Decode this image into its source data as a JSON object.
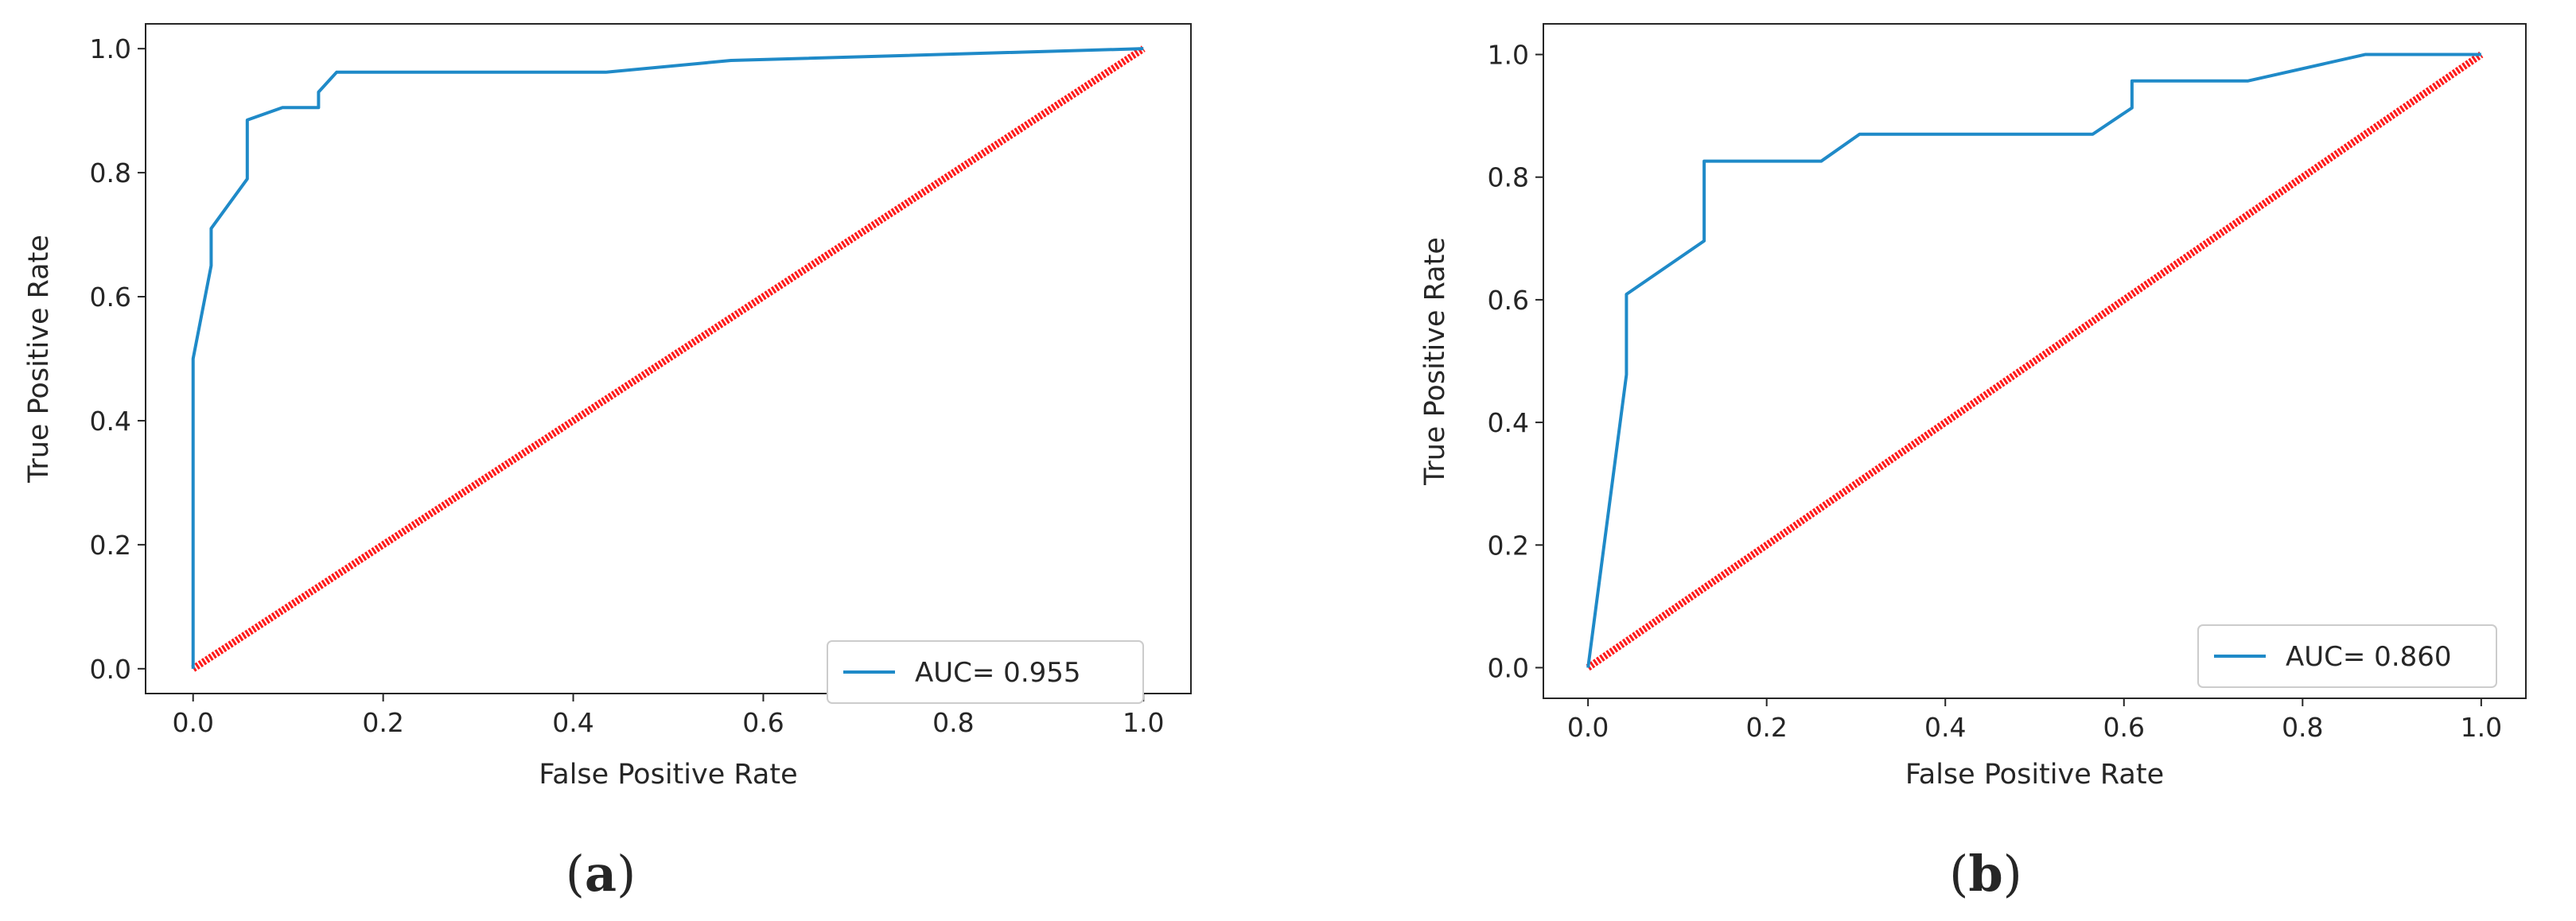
{
  "figure": {
    "panels": [
      {
        "caption_open": "(",
        "caption_letter": "a",
        "caption_close": ")"
      },
      {
        "caption_open": "(",
        "caption_letter": "b",
        "caption_close": ")"
      }
    ]
  },
  "colors": {
    "roc_line": "#1f8ac8",
    "diagonal": "#ff1a1a",
    "axes": "#262626",
    "legend_border": "#cccccc"
  },
  "chart_data": [
    {
      "type": "line",
      "title": "",
      "xlabel": "False Positive Rate",
      "ylabel": "True Positive Rate",
      "xlim": [
        -0.05,
        1.05
      ],
      "ylim": [
        -0.04,
        1.04
      ],
      "xticks": [
        0.0,
        0.2,
        0.4,
        0.6,
        0.8,
        1.0
      ],
      "yticks": [
        0.0,
        0.2,
        0.4,
        0.6,
        0.8,
        1.0
      ],
      "tick_labels": [
        "0.0",
        "0.2",
        "0.4",
        "0.6",
        "0.8",
        "1.0"
      ],
      "grid": false,
      "legend_position": "lower-right",
      "series": [
        {
          "name": "AUC= 0.955",
          "x": [
            0.0,
            0.0,
            0.019,
            0.019,
            0.038,
            0.057,
            0.057,
            0.094,
            0.132,
            0.132,
            0.151,
            0.434,
            0.566,
            1.0
          ],
          "y": [
            0.0,
            0.5,
            0.65,
            0.71,
            0.75,
            0.79,
            0.885,
            0.905,
            0.905,
            0.93,
            0.962,
            0.962,
            0.981,
            1.0
          ]
        },
        {
          "name": "diagonal",
          "x": [
            0.0,
            1.0
          ],
          "y": [
            0.0,
            1.0
          ]
        }
      ]
    },
    {
      "type": "line",
      "title": "",
      "xlabel": "False Positive Rate",
      "ylabel": "True Positive Rate",
      "xlim": [
        -0.05,
        1.05
      ],
      "ylim": [
        -0.05,
        1.05
      ],
      "xticks": [
        0.0,
        0.2,
        0.4,
        0.6,
        0.8,
        1.0
      ],
      "yticks": [
        0.0,
        0.2,
        0.4,
        0.6,
        0.8,
        1.0
      ],
      "tick_labels": [
        "0.0",
        "0.2",
        "0.4",
        "0.6",
        "0.8",
        "1.0"
      ],
      "grid": false,
      "legend_position": "lower-right",
      "series": [
        {
          "name": "AUC= 0.860",
          "x": [
            0.0,
            0.043,
            0.043,
            0.13,
            0.13,
            0.261,
            0.304,
            0.565,
            0.609,
            0.609,
            0.739,
            0.87,
            1.0
          ],
          "y": [
            0.0,
            0.478,
            0.609,
            0.696,
            0.826,
            0.826,
            0.87,
            0.87,
            0.913,
            0.957,
            0.957,
            1.0,
            1.0
          ]
        },
        {
          "name": "diagonal",
          "x": [
            0.0,
            1.0
          ],
          "y": [
            0.0,
            1.0
          ]
        }
      ]
    }
  ]
}
